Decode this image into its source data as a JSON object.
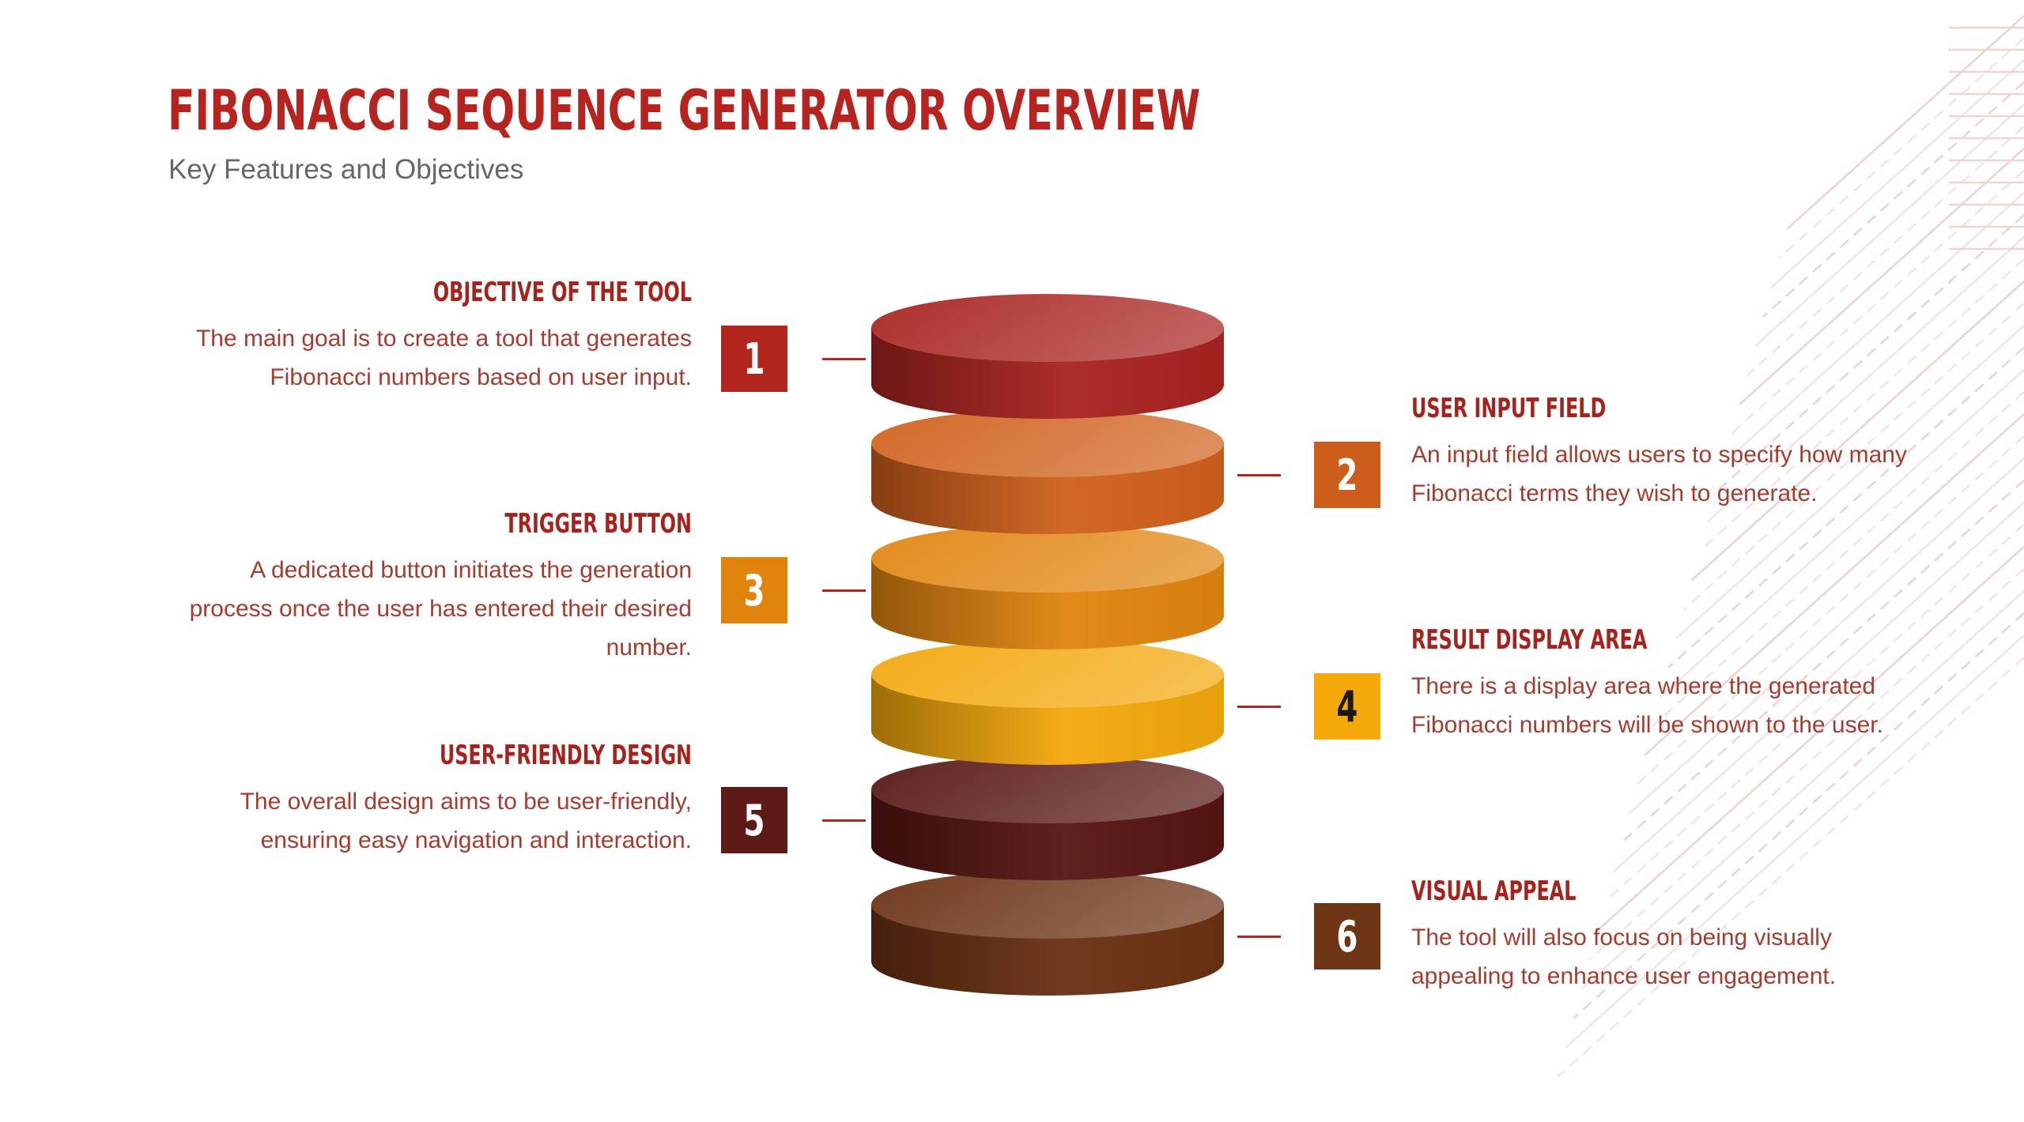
{
  "title": "FIBONACCI SEQUENCE GENERATOR OVERVIEW",
  "subtitle": "Key Features and Objectives",
  "colors": {
    "title": "#b7241f",
    "subtitle": "#666666",
    "heading": "#a5231c",
    "body": "#a53c30",
    "layer_1": "#a8231f",
    "layer_2": "#d0601c",
    "layer_3": "#e0850f",
    "layer_4": "#f3a80c",
    "layer_5": "#561512",
    "layer_6": "#6a3012"
  },
  "items": [
    {
      "number": "1",
      "heading": "OBJECTIVE OF THE TOOL",
      "text": "The main goal is to create a tool that generates Fibonacci numbers based on user input.",
      "badge_color": "#b2261e",
      "badge_text_color": "#ffffff"
    },
    {
      "number": "2",
      "heading": "USER INPUT FIELD",
      "text": "An input field allows users to specify how many Fibonacci terms they wish to generate.",
      "badge_color": "#cc5d1a",
      "badge_text_color": "#ffffff"
    },
    {
      "number": "3",
      "heading": "TRIGGER BUTTON",
      "text": "A dedicated button initiates the generation process once the user has entered their desired number.",
      "badge_color": "#e0840e",
      "badge_text_color": "#ffffff"
    },
    {
      "number": "4",
      "heading": "RESULT DISPLAY AREA",
      "text": "There is a display area where the generated Fibonacci numbers will be shown to the user.",
      "badge_color": "#f5a90b",
      "badge_text_color": "#1a1a1a"
    },
    {
      "number": "5",
      "heading": "USER-FRIENDLY DESIGN",
      "text": "The overall design aims to be user-friendly, ensuring easy navigation and interaction.",
      "badge_color": "#5e1a16",
      "badge_text_color": "#ffffff"
    },
    {
      "number": "6",
      "heading": "VISUAL APPEAL",
      "text": "The tool will also focus on being visually appealing to enhance user engagement.",
      "badge_color": "#6f3616",
      "badge_text_color": "#ffffff"
    }
  ]
}
